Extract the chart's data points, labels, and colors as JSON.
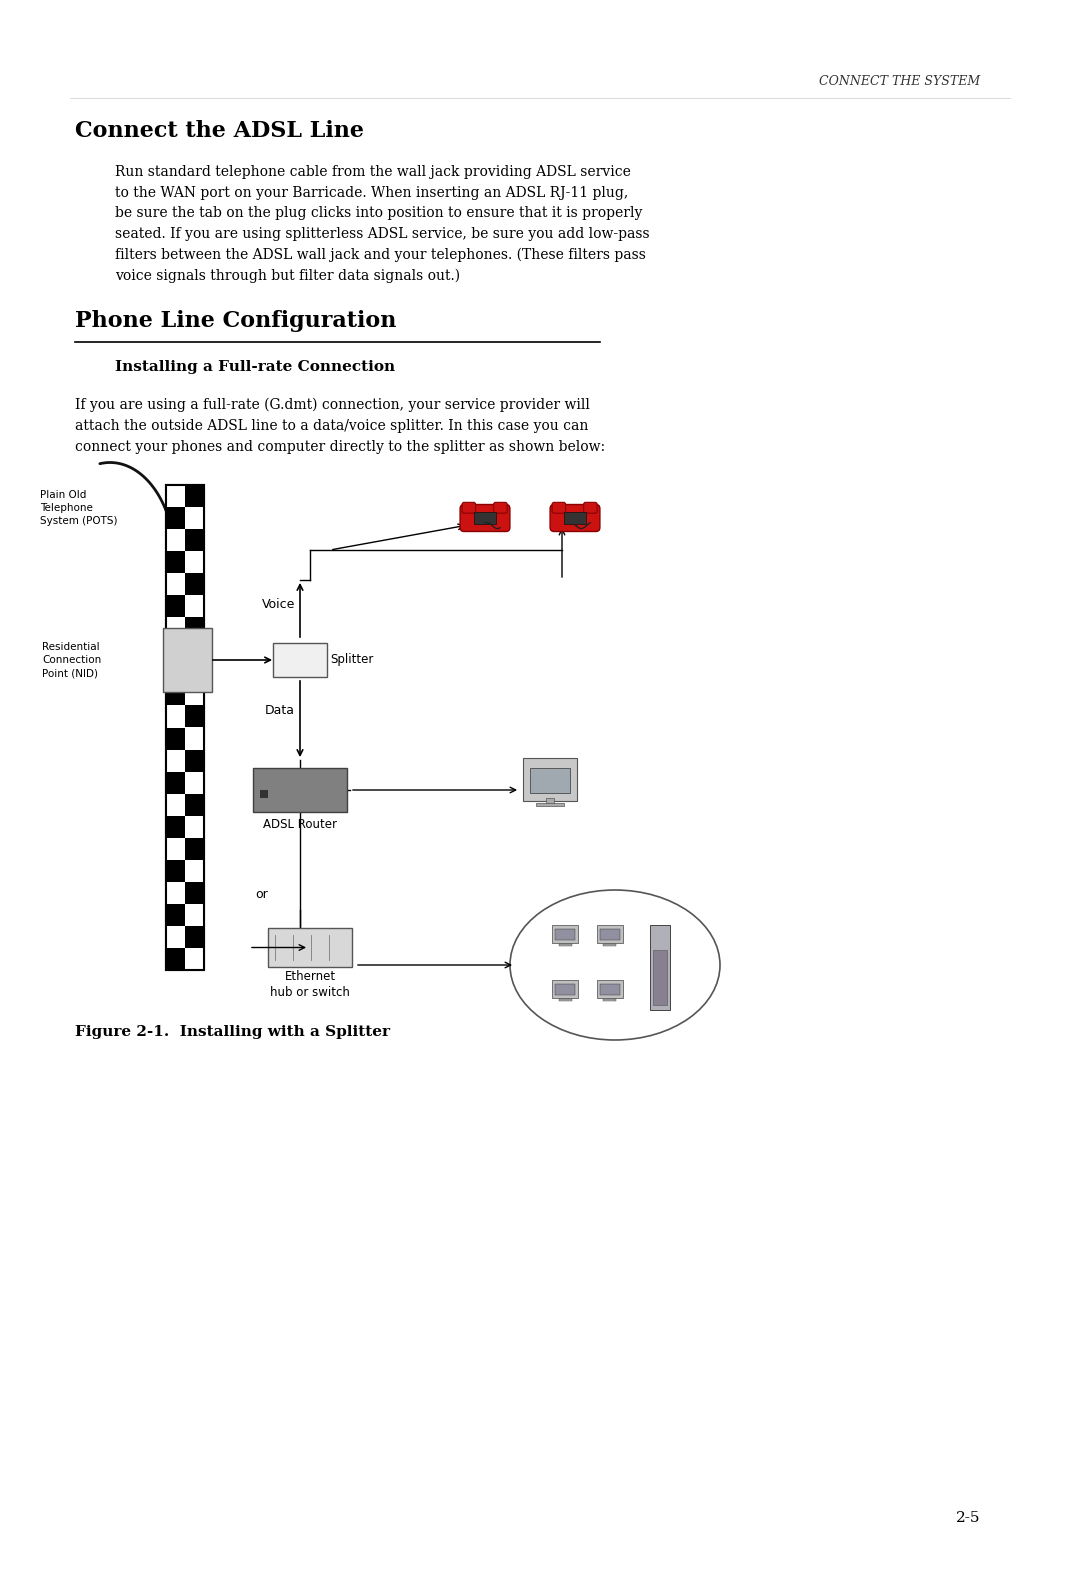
{
  "bg_color": "#ffffff",
  "page_width": 10.8,
  "page_height": 15.7,
  "header_text": "C​ONNECT THE S​YSTEM",
  "section1_title": "Connect the ADSL Line",
  "section1_body": "Run standard telephone cable from the wall jack providing ADSL service\nto the WAN port on your Barricade. When inserting an ADSL RJ-11 plug,\nbe sure the tab on the plug clicks into position to ensure that it is properly\nseated. If you are using splitterless ADSL service, be sure you add low-pass\nfilters between the ADSL wall jack and your telephones. (These filters pass\nvoice signals through but filter data signals out.)",
  "section2_title": "Phone Line Configuration",
  "subsection_title": "Installing a Full-rate Connection",
  "subsection_body": "If you are using a full-rate (G.dmt) connection, your service provider will\nattach the outside ADSL line to a data/voice splitter. In this case you can\nconnect your phones and computer directly to the splitter as shown below:",
  "figure_caption": "Figure 2-1.  Installing with a Splitter",
  "page_number": "2-5",
  "diagram_labels": {
    "pots": "Plain Old\nTelephone\nSystem (POTS)",
    "nid": "Residential\nConnection\nPoint (NID)",
    "voice": "Voice",
    "splitter": "Splitter",
    "data": "Data",
    "adsl_router": "ADSL Router",
    "or": "or",
    "ethernet": "Ethernet\nhub or switch"
  }
}
